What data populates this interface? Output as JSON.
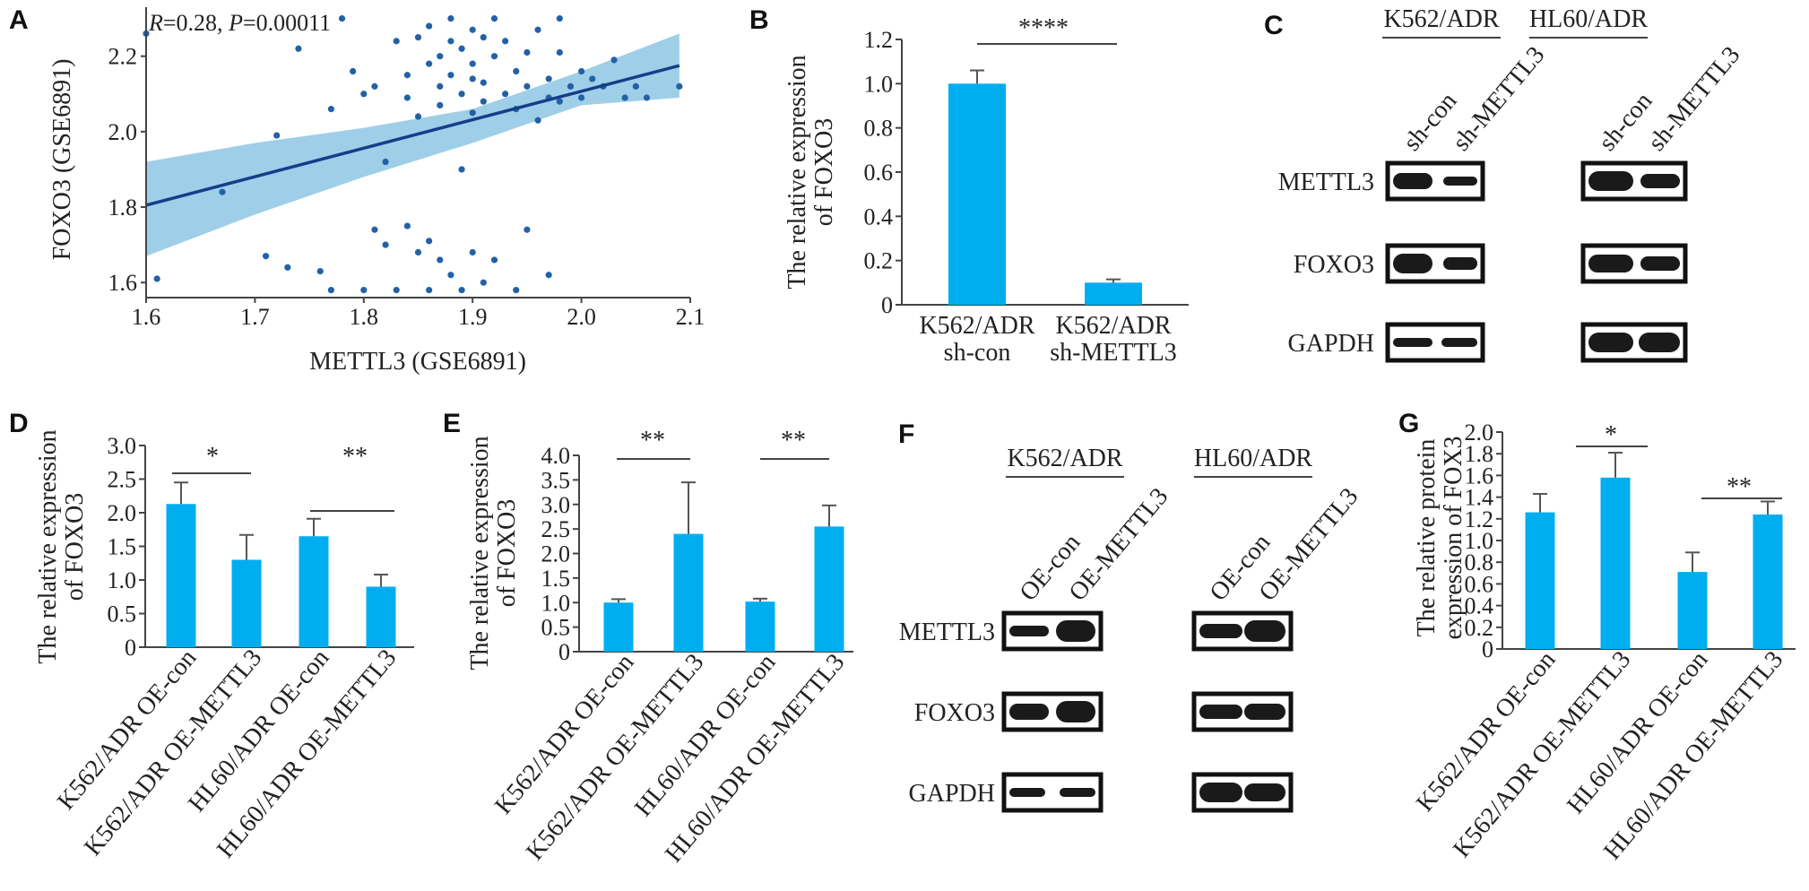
{
  "panels": {
    "A": {
      "label": "A",
      "annotation_parts": [
        "R",
        "=0.28, ",
        "P",
        "=0.00011"
      ],
      "chart_data": {
        "type": "scatter",
        "xlabel": "METTL3 (GSE6891)",
        "ylabel": "FOXO3 (GSE6891)",
        "xlim": [
          1.6,
          2.1
        ],
        "ylim": [
          1.56,
          2.33
        ],
        "xticks": [
          "1.6",
          "1.7",
          "1.8",
          "1.9",
          "2.0",
          "2.1"
        ],
        "yticks": [
          "1.6",
          "1.8",
          "2.0",
          "2.2"
        ],
        "regression": {
          "x": [
            1.6,
            2.09
          ],
          "y": [
            1.805,
            2.175
          ]
        },
        "ci_band": {
          "x": [
            1.6,
            1.7,
            1.8,
            1.9,
            2.0,
            2.09
          ],
          "upper": [
            1.92,
            1.97,
            2.01,
            2.06,
            2.16,
            2.26
          ],
          "lower": [
            1.67,
            1.78,
            1.88,
            1.97,
            2.07,
            2.09
          ]
        },
        "points": [
          [
            1.6,
            2.26
          ],
          [
            1.61,
            1.61
          ],
          [
            1.67,
            1.84
          ],
          [
            1.71,
            1.67
          ],
          [
            1.72,
            1.99
          ],
          [
            1.73,
            1.64
          ],
          [
            1.74,
            2.22
          ],
          [
            1.76,
            1.63
          ],
          [
            1.77,
            2.06
          ],
          [
            1.77,
            1.58
          ],
          [
            1.78,
            2.3
          ],
          [
            1.79,
            2.16
          ],
          [
            1.8,
            2.1
          ],
          [
            1.8,
            1.58
          ],
          [
            1.81,
            2.12
          ],
          [
            1.81,
            1.74
          ],
          [
            1.82,
            1.92
          ],
          [
            1.82,
            1.7
          ],
          [
            1.83,
            2.24
          ],
          [
            1.83,
            1.58
          ],
          [
            1.84,
            2.15
          ],
          [
            1.84,
            2.09
          ],
          [
            1.84,
            1.75
          ],
          [
            1.85,
            2.25
          ],
          [
            1.85,
            1.68
          ],
          [
            1.85,
            2.04
          ],
          [
            1.86,
            2.28
          ],
          [
            1.86,
            2.18
          ],
          [
            1.86,
            1.58
          ],
          [
            1.86,
            1.71
          ],
          [
            1.87,
            2.2
          ],
          [
            1.87,
            2.12
          ],
          [
            1.87,
            2.07
          ],
          [
            1.87,
            1.66
          ],
          [
            1.88,
            2.24
          ],
          [
            1.88,
            2.15
          ],
          [
            1.88,
            1.62
          ],
          [
            1.88,
            2.3
          ],
          [
            1.89,
            2.22
          ],
          [
            1.89,
            2.1
          ],
          [
            1.89,
            1.58
          ],
          [
            1.89,
            1.9
          ],
          [
            1.9,
            2.27
          ],
          [
            1.9,
            2.18
          ],
          [
            1.9,
            2.14
          ],
          [
            1.9,
            1.68
          ],
          [
            1.9,
            2.05
          ],
          [
            1.91,
            2.25
          ],
          [
            1.91,
            2.13
          ],
          [
            1.91,
            1.6
          ],
          [
            1.91,
            2.08
          ],
          [
            1.92,
            2.3
          ],
          [
            1.92,
            2.2
          ],
          [
            1.92,
            1.66
          ],
          [
            1.93,
            2.1
          ],
          [
            1.93,
            2.24
          ],
          [
            1.94,
            2.16
          ],
          [
            1.94,
            1.58
          ],
          [
            1.94,
            2.06
          ],
          [
            1.95,
            2.21
          ],
          [
            1.95,
            2.12
          ],
          [
            1.95,
            1.74
          ],
          [
            1.96,
            2.27
          ],
          [
            1.96,
            2.03
          ],
          [
            1.97,
            2.14
          ],
          [
            1.97,
            1.62
          ],
          [
            1.98,
            2.21
          ],
          [
            1.98,
            2.08
          ],
          [
            1.98,
            2.3
          ],
          [
            1.99,
            2.12
          ],
          [
            2.0,
            2.16
          ],
          [
            2.0,
            2.09
          ],
          [
            2.01,
            2.14
          ],
          [
            2.02,
            2.12
          ],
          [
            2.03,
            2.19
          ],
          [
            2.04,
            2.09
          ],
          [
            2.05,
            2.12
          ],
          [
            2.06,
            2.09
          ],
          [
            2.09,
            2.12
          ],
          [
            1.97,
            2.09
          ]
        ]
      }
    },
    "B": {
      "label": "B",
      "significance": "****",
      "chart_data": {
        "type": "bar",
        "ylabel_lines": [
          "The relative expression",
          "of FOXO3"
        ],
        "ylim": [
          0,
          1.2
        ],
        "yticks": [
          "0",
          "0.2",
          "0.4",
          "0.6",
          "0.8",
          "1.0",
          "1.2"
        ],
        "categories": [
          [
            "K562/ADR",
            "sh-con"
          ],
          [
            "K562/ADR",
            "sh-METTL3"
          ]
        ],
        "values": [
          1.0,
          0.1
        ],
        "errors": [
          0.06,
          0.015
        ]
      }
    },
    "C": {
      "label": "C",
      "groups": [
        "K562/ADR",
        "HL60/ADR"
      ],
      "lanes": [
        "sh-con",
        "sh-METTL3"
      ],
      "rows": [
        "METTL3",
        "FOXO3",
        "GAPDH"
      ]
    },
    "D": {
      "label": "D",
      "significance": [
        "*",
        "**"
      ],
      "chart_data": {
        "type": "bar",
        "ylabel_lines": [
          "The relative expression",
          "of FOXO3"
        ],
        "ylim": [
          0,
          3.0
        ],
        "yticks": [
          "0",
          "0.5",
          "1.0",
          "1.5",
          "2.0",
          "2.5",
          "3.0"
        ],
        "categories": [
          "K562/ADR OE-con",
          "K562/ADR OE-METTL3",
          "HL60/ADR OE-con",
          "HL60/ADR OE-METTL3"
        ],
        "values": [
          2.13,
          1.3,
          1.65,
          0.9
        ],
        "errors": [
          0.32,
          0.37,
          0.26,
          0.18
        ]
      }
    },
    "E": {
      "label": "E",
      "significance": [
        "**",
        "**"
      ],
      "chart_data": {
        "type": "bar",
        "ylabel_lines": [
          "The relative expression",
          "of FOXO3"
        ],
        "ylim": [
          0,
          4.0
        ],
        "yticks": [
          "0",
          "0.5",
          "1.0",
          "1.5",
          "2.0",
          "2.5",
          "3.0",
          "3.5",
          "4.0"
        ],
        "categories": [
          "K562/ADR OE-con",
          "K562/ADR OE-METTL3",
          "HL60/ADR OE-con",
          "HL60/ADR OE-METTL3"
        ],
        "values": [
          1.0,
          2.4,
          1.02,
          2.55
        ],
        "errors": [
          0.07,
          1.05,
          0.06,
          0.43
        ]
      }
    },
    "F": {
      "label": "F",
      "groups": [
        "K562/ADR",
        "HL60/ADR"
      ],
      "lanes": [
        "OE-con",
        "OE-METTL3"
      ],
      "rows": [
        "METTL3",
        "FOXO3",
        "GAPDH"
      ]
    },
    "G": {
      "label": "G",
      "significance": [
        "*",
        "**"
      ],
      "chart_data": {
        "type": "bar",
        "ylabel_lines": [
          "The relative protein",
          "expression of FOX3"
        ],
        "ylim": [
          0,
          2.0
        ],
        "yticks": [
          "0",
          "0.2",
          "0.4",
          "0.6",
          "0.8",
          "1.0",
          "1.2",
          "1.4",
          "1.6",
          "1.8",
          "2.0"
        ],
        "categories": [
          "K562/ADR OE-con",
          "K562/ADR OE-METTL3",
          "HL60/ADR OE-con",
          "HL60/ADR OE-METTL3"
        ],
        "values": [
          1.26,
          1.58,
          0.71,
          1.24
        ],
        "errors": [
          0.17,
          0.23,
          0.18,
          0.12
        ]
      }
    }
  }
}
